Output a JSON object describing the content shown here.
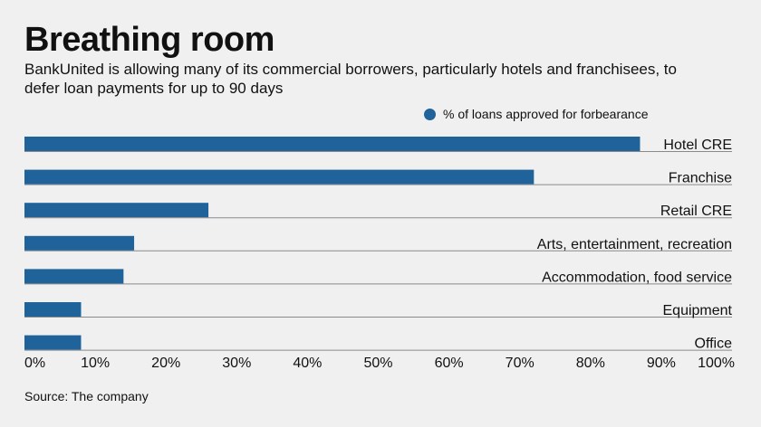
{
  "header": {
    "title": "Breathing room",
    "subtitle": "BankUnited is allowing many of its commercial borrowers, particularly hotels and franchisees, to defer loan payments for up to 90 days"
  },
  "footer": {
    "source": "Source: The company"
  },
  "colors": {
    "bar": "#1f639a",
    "axis_line": "#8a8a8a",
    "background": "#eff0ef"
  },
  "chart_data": {
    "type": "bar",
    "orientation": "horizontal",
    "categories": [
      "Hotel CRE",
      "Franchise",
      "Retail CRE",
      "Arts, entertainment, recreation",
      "Accommodation, food service",
      "Equipment",
      "Office"
    ],
    "series": [
      {
        "name": "% of loans approved for forbearance",
        "values": [
          87,
          72,
          26,
          15.5,
          14,
          8,
          8
        ]
      }
    ],
    "xlim": [
      0,
      100
    ],
    "xticks": [
      "0%",
      "10%",
      "20%",
      "30%",
      "40%",
      "50%",
      "60%",
      "70%",
      "80%",
      "90%",
      "100%"
    ],
    "grid": false,
    "legend_position": "top-right"
  }
}
